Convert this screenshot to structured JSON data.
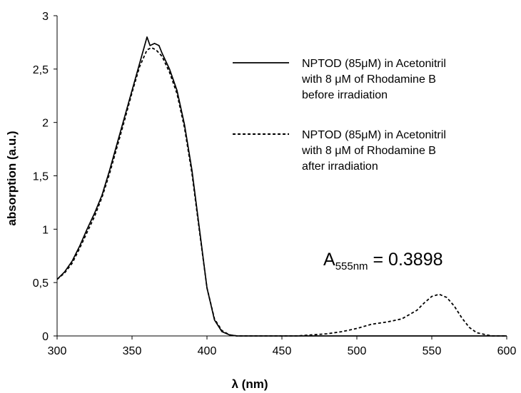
{
  "chart_data": {
    "type": "line",
    "title": "",
    "xlabel": "λ  (nm)",
    "ylabel": "absorption (a.u.)",
    "xlim": [
      300,
      600
    ],
    "ylim": [
      0,
      3
    ],
    "x_ticks": [
      "300",
      "350",
      "400",
      "450",
      "500",
      "550",
      "600"
    ],
    "y_ticks": [
      "0",
      "0,5",
      "1",
      "1,5",
      "2",
      "2,5",
      "3"
    ],
    "grid": false,
    "legend_position": "top-right",
    "annotation": {
      "main": "A",
      "sub": "555nm",
      "rest": " = 0.3898"
    },
    "series": [
      {
        "name_lines": [
          "NPTOD (85μM) in Acetonitril",
          "with 8 μM of Rhodamine B",
          "before irradiation"
        ],
        "style": "solid",
        "color": "#000000",
        "x": [
          300,
          305,
          310,
          315,
          320,
          325,
          330,
          335,
          340,
          345,
          350,
          355,
          358,
          360,
          362,
          365,
          368,
          370,
          375,
          380,
          385,
          390,
          395,
          400,
          405,
          410,
          415,
          420,
          440,
          460,
          480,
          500,
          520,
          540,
          560,
          580,
          600
        ],
        "y": [
          0.53,
          0.6,
          0.7,
          0.84,
          1.0,
          1.15,
          1.32,
          1.55,
          1.8,
          2.05,
          2.3,
          2.55,
          2.7,
          2.8,
          2.72,
          2.74,
          2.72,
          2.65,
          2.5,
          2.3,
          1.98,
          1.55,
          1.0,
          0.45,
          0.15,
          0.04,
          0.01,
          0.0,
          0.0,
          0.0,
          0.0,
          0.0,
          0.0,
          0.0,
          0.0,
          0.0,
          0.0
        ]
      },
      {
        "name_lines": [
          "NPTOD (85μM) in Acetonitril",
          "with 8 μM of Rhodamine B",
          "after irradiation"
        ],
        "style": "dotted",
        "color": "#000000",
        "x": [
          300,
          305,
          310,
          315,
          320,
          325,
          330,
          335,
          340,
          345,
          350,
          355,
          360,
          363,
          366,
          370,
          375,
          380,
          385,
          390,
          395,
          400,
          405,
          410,
          415,
          420,
          440,
          460,
          480,
          490,
          500,
          510,
          520,
          530,
          540,
          545,
          550,
          555,
          560,
          565,
          570,
          575,
          580,
          590,
          600
        ],
        "y": [
          0.53,
          0.59,
          0.68,
          0.82,
          0.97,
          1.12,
          1.3,
          1.52,
          1.77,
          2.02,
          2.28,
          2.52,
          2.68,
          2.7,
          2.68,
          2.62,
          2.47,
          2.27,
          1.95,
          1.52,
          0.98,
          0.45,
          0.16,
          0.05,
          0.01,
          0.0,
          0.0,
          0.0,
          0.02,
          0.04,
          0.07,
          0.11,
          0.13,
          0.16,
          0.24,
          0.31,
          0.37,
          0.39,
          0.36,
          0.28,
          0.17,
          0.08,
          0.03,
          0.0,
          0.0
        ]
      }
    ]
  }
}
